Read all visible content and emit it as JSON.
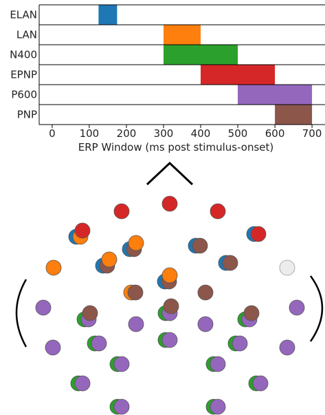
{
  "chart_data": {
    "type": "bar",
    "orientation": "horizontal",
    "title": "",
    "xlabel": "ERP Window (ms post stimulus-onset)",
    "ylabel": "",
    "xlim": [
      -35,
      735
    ],
    "x_ticks": [
      0,
      100,
      200,
      300,
      400,
      500,
      600,
      700
    ],
    "grid": false,
    "categories": [
      "ELAN",
      "LAN",
      "N400",
      "EPNP",
      "P600",
      "PNP"
    ],
    "series": [
      {
        "category": "ELAN",
        "start": 125,
        "end": 175,
        "color": "#1f77b4"
      },
      {
        "category": "LAN",
        "start": 300,
        "end": 400,
        "color": "#ff7f0e"
      },
      {
        "category": "N400",
        "start": 300,
        "end": 500,
        "color": "#2ca02c"
      },
      {
        "category": "EPNP",
        "start": 400,
        "end": 600,
        "color": "#d62728"
      },
      {
        "category": "P600",
        "start": 500,
        "end": 700,
        "color": "#9467bd"
      },
      {
        "category": "PNP",
        "start": 600,
        "end": 700,
        "color": "#8c564b"
      }
    ]
  },
  "electrode_map": {
    "description_colors": {
      "ELAN": "#1f77b4",
      "LAN": "#ff7f0e",
      "N400": "#2ca02c",
      "EPNP": "#d62728",
      "P600": "#9467bd",
      "PNP": "#8c564b",
      "none": "#ececec"
    },
    "electrodes": [
      {
        "cx": 247,
        "cy": 296,
        "colors": [
          "EPNP"
        ]
      },
      {
        "cx": 177,
        "cy": 307,
        "colors": [
          "EPNP"
        ]
      },
      {
        "cx": 317,
        "cy": 307,
        "colors": [
          "EPNP"
        ]
      },
      {
        "cx": 114,
        "cy": 344,
        "colors": [
          "ELAN",
          "LAN"
        ]
      },
      {
        "cx": 120,
        "cy": 335,
        "colors": [
          "EPNP"
        ]
      },
      {
        "cx": 373,
        "cy": 340,
        "colors": [
          "ELAN",
          "EPNP"
        ]
      },
      {
        "cx": 192,
        "cy": 362,
        "colors": [
          "ELAN",
          "PNP"
        ]
      },
      {
        "cx": 198,
        "cy": 353,
        "colors": [
          "LAN"
        ]
      },
      {
        "cx": 288,
        "cy": 357,
        "colors": [
          "ELAN",
          "PNP"
        ]
      },
      {
        "cx": 78,
        "cy": 389,
        "colors": [
          "LAN"
        ]
      },
      {
        "cx": 153,
        "cy": 386,
        "colors": [
          "ELAN",
          "PNP"
        ]
      },
      {
        "cx": 159,
        "cy": 377,
        "colors": [
          "LAN"
        ]
      },
      {
        "cx": 332,
        "cy": 382,
        "colors": [
          "ELAN",
          "PNP"
        ]
      },
      {
        "cx": 418,
        "cy": 389,
        "colors": [
          "none"
        ]
      },
      {
        "cx": 243,
        "cy": 409,
        "colors": [
          "ELAN",
          "PNP"
        ]
      },
      {
        "cx": 247,
        "cy": 400,
        "colors": [
          "LAN"
        ]
      },
      {
        "cx": 194,
        "cy": 425,
        "colors": [
          "LAN",
          "PNP"
        ]
      },
      {
        "cx": 299,
        "cy": 425,
        "colors": [
          "PNP"
        ]
      },
      {
        "cx": 63,
        "cy": 447,
        "colors": [
          "P600"
        ]
      },
      {
        "cx": 432,
        "cy": 447,
        "colors": [
          "P600"
        ]
      },
      {
        "cx": 126,
        "cy": 464,
        "colors": [
          "N400",
          "P600"
        ]
      },
      {
        "cx": 131,
        "cy": 455,
        "colors": [
          "PNP"
        ]
      },
      {
        "cx": 244,
        "cy": 455,
        "colors": [
          "N400",
          "P600"
        ]
      },
      {
        "cx": 249,
        "cy": 445,
        "colors": [
          "PNP"
        ]
      },
      {
        "cx": 360,
        "cy": 464,
        "colors": [
          "N400",
          "P600"
        ]
      },
      {
        "cx": 366,
        "cy": 455,
        "colors": [
          "PNP"
        ]
      },
      {
        "cx": 198,
        "cy": 471,
        "colors": [
          "P600"
        ]
      },
      {
        "cx": 299,
        "cy": 471,
        "colors": [
          "P600"
        ]
      },
      {
        "cx": 77,
        "cy": 505,
        "colors": [
          "P600"
        ]
      },
      {
        "cx": 418,
        "cy": 505,
        "colors": [
          "P600"
        ]
      },
      {
        "cx": 141,
        "cy": 499,
        "colors": [
          "N400",
          "P600"
        ]
      },
      {
        "cx": 244,
        "cy": 494,
        "colors": [
          "N400",
          "P600"
        ]
      },
      {
        "cx": 346,
        "cy": 499,
        "colors": [
          "N400",
          "P600"
        ]
      },
      {
        "cx": 174,
        "cy": 529,
        "colors": [
          "N400",
          "P600"
        ]
      },
      {
        "cx": 314,
        "cy": 529,
        "colors": [
          "N400",
          "P600"
        ]
      },
      {
        "cx": 117,
        "cy": 557,
        "colors": [
          "N400",
          "P600"
        ]
      },
      {
        "cx": 376,
        "cy": 557,
        "colors": [
          "N400",
          "P600"
        ]
      },
      {
        "cx": 174,
        "cy": 591,
        "colors": [
          "N400",
          "P600"
        ]
      },
      {
        "cx": 314,
        "cy": 591,
        "colors": [
          "N400",
          "P600"
        ]
      }
    ]
  }
}
